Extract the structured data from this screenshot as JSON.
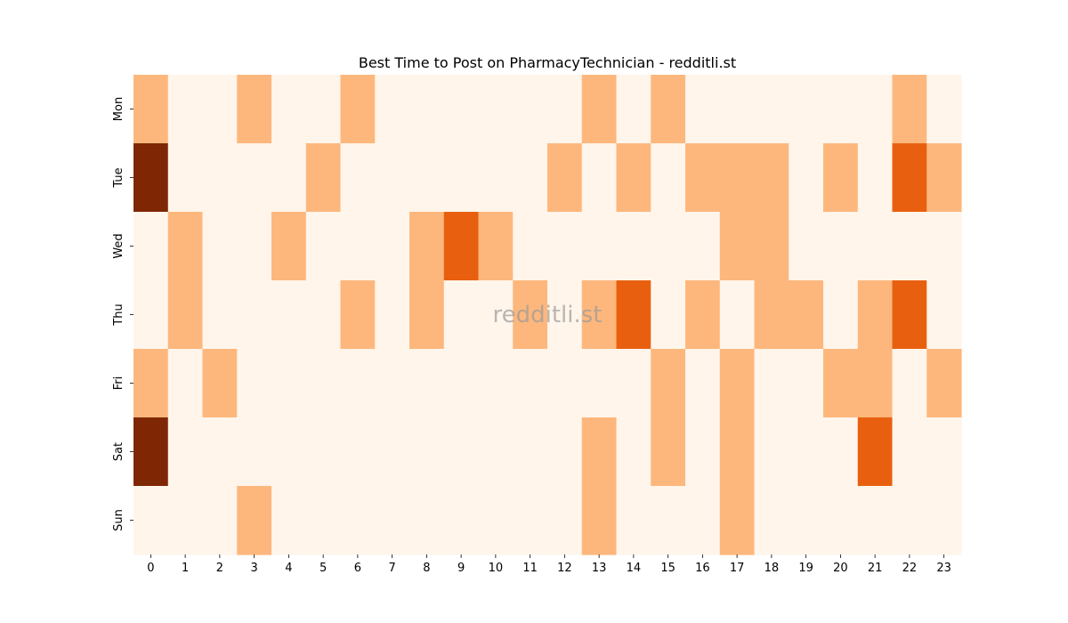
{
  "chart_data": {
    "type": "heatmap",
    "title": "Best Time to Post on PharmacyTechnician - redditli.st",
    "watermark": "redditli.st",
    "xlabel": "",
    "ylabel": "",
    "x": [
      "0",
      "1",
      "2",
      "3",
      "4",
      "5",
      "6",
      "7",
      "8",
      "9",
      "10",
      "11",
      "12",
      "13",
      "14",
      "15",
      "16",
      "17",
      "18",
      "19",
      "20",
      "21",
      "22",
      "23"
    ],
    "y": [
      "Mon",
      "Tue",
      "Wed",
      "Thu",
      "Fri",
      "Sat",
      "Sun"
    ],
    "colormap": "Oranges",
    "values": [
      [
        1,
        0,
        0,
        1,
        0,
        0,
        1,
        0,
        0,
        0,
        0,
        0,
        0,
        1,
        0,
        1,
        0,
        0,
        0,
        0,
        0,
        0,
        1,
        0
      ],
      [
        3,
        0,
        0,
        0,
        0,
        1,
        0,
        0,
        0,
        0,
        0,
        0,
        1,
        0,
        1,
        0,
        1,
        1,
        1,
        0,
        1,
        0,
        2,
        1
      ],
      [
        0,
        1,
        0,
        0,
        1,
        0,
        0,
        0,
        1,
        2,
        1,
        0,
        0,
        0,
        0,
        0,
        0,
        1,
        1,
        0,
        0,
        0,
        0,
        0
      ],
      [
        0,
        1,
        0,
        0,
        0,
        0,
        1,
        0,
        1,
        0,
        0,
        1,
        0,
        1,
        2,
        0,
        1,
        0,
        1,
        1,
        0,
        1,
        2,
        0
      ],
      [
        1,
        0,
        1,
        0,
        0,
        0,
        0,
        0,
        0,
        0,
        0,
        0,
        0,
        0,
        0,
        1,
        0,
        1,
        0,
        0,
        1,
        1,
        0,
        1
      ],
      [
        3,
        0,
        0,
        0,
        0,
        0,
        0,
        0,
        0,
        0,
        0,
        0,
        0,
        1,
        0,
        1,
        0,
        1,
        0,
        0,
        0,
        2,
        0,
        0
      ],
      [
        0,
        0,
        0,
        1,
        0,
        0,
        0,
        0,
        0,
        0,
        0,
        0,
        0,
        1,
        0,
        0,
        0,
        1,
        0,
        0,
        0,
        0,
        0,
        0
      ]
    ],
    "level_colors": [
      "#fff5eb",
      "#fdb77c",
      "#e8600f",
      "#7f2704"
    ],
    "grid": false,
    "legend": "none"
  }
}
